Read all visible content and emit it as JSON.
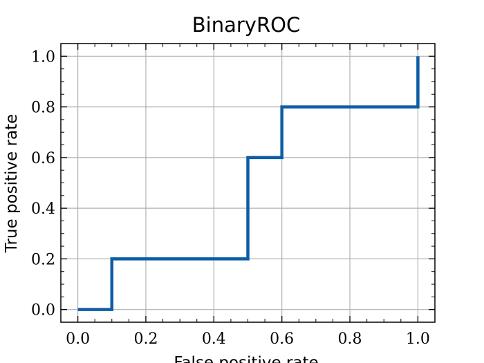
{
  "chart_data": {
    "type": "line",
    "title": "BinaryROC",
    "xlabel": "False positive rate",
    "ylabel": "True positive rate",
    "xlim": [
      -0.05,
      1.05
    ],
    "ylim": [
      -0.05,
      1.05
    ],
    "xticks": [
      0.0,
      0.2,
      0.4,
      0.6,
      0.8,
      1.0
    ],
    "yticks": [
      0.0,
      0.2,
      0.4,
      0.6,
      0.8,
      1.0
    ],
    "xtick_labels": [
      "0.0",
      "0.2",
      "0.4",
      "0.6",
      "0.8",
      "1.0"
    ],
    "ytick_labels": [
      "0.0",
      "0.2",
      "0.4",
      "0.6",
      "0.8",
      "1.0"
    ],
    "grid": true,
    "series": [
      {
        "color": "#0c5da5",
        "x": [
          0.0,
          0.1,
          0.1,
          0.5,
          0.5,
          0.6,
          0.6,
          1.0,
          1.0
        ],
        "y": [
          0.0,
          0.0,
          0.2,
          0.2,
          0.6,
          0.6,
          0.8,
          0.8,
          1.0
        ]
      }
    ]
  }
}
